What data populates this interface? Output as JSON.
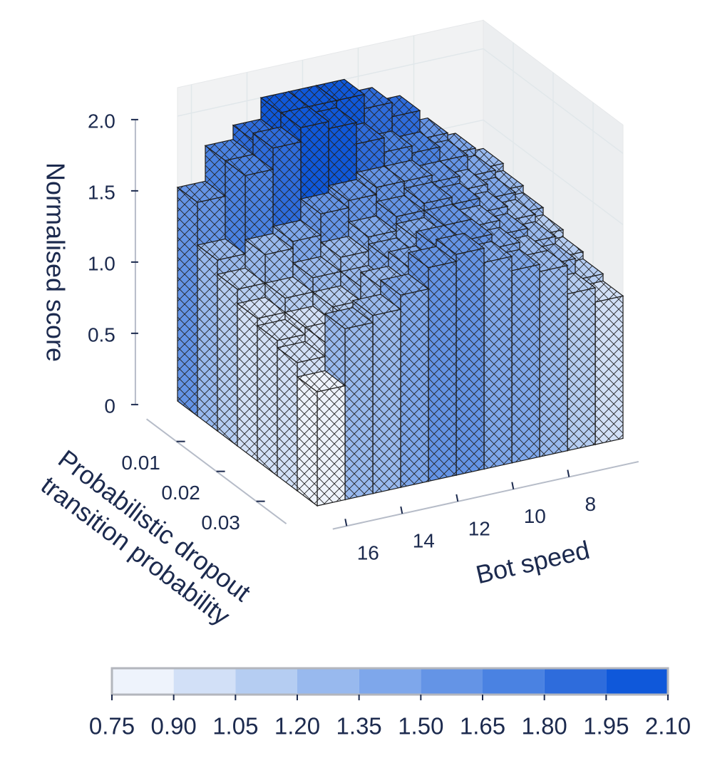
{
  "chart_data": {
    "type": "bar3d",
    "xlabel": "Bot speed",
    "ylabel": [
      "Probabilistic dropout",
      "transition probability"
    ],
    "zlabel": "Normalised score",
    "x": [
      6,
      7,
      8,
      9,
      10,
      11,
      12,
      13,
      14,
      15,
      16
    ],
    "xlim": [
      5.5,
      16.5
    ],
    "xticks": [
      8,
      10,
      12,
      14,
      16
    ],
    "y": [
      0.005,
      0.01,
      0.015,
      0.02,
      0.025,
      0.03,
      0.035
    ],
    "ylim": [
      0.0025,
      0.0375
    ],
    "yticks": [
      0.01,
      0.02,
      0.03
    ],
    "zlim": [
      0,
      2.2
    ],
    "zticks": [
      0,
      0.5,
      {
        "value": 1,
        "label": "1.0"
      },
      1.5,
      {
        "value": 2,
        "label": "2.0"
      }
    ],
    "values": [
      [
        1.3,
        1.45,
        1.6,
        1.8,
        1.9,
        2.0,
        2.0,
        2.0,
        1.85,
        1.75,
        1.5
      ],
      [
        1.25,
        1.4,
        1.55,
        1.65,
        1.7,
        1.8,
        1.95,
        2.0,
        1.9,
        1.75,
        1.2
      ],
      [
        1.2,
        1.35,
        1.45,
        1.55,
        1.6,
        1.6,
        1.55,
        1.5,
        1.35,
        1.3,
        1.1
      ],
      [
        1.15,
        1.3,
        1.4,
        1.5,
        1.55,
        1.5,
        1.4,
        1.3,
        1.2,
        1.1,
        1.0
      ],
      [
        1.1,
        1.25,
        1.35,
        1.45,
        1.5,
        1.45,
        1.35,
        1.2,
        1.1,
        1.0,
        0.95
      ],
      [
        1.05,
        1.2,
        1.3,
        1.4,
        1.5,
        1.5,
        1.4,
        1.3,
        1.1,
        1.0,
        0.9
      ],
      [
        1.0,
        1.1,
        1.3,
        1.35,
        1.45,
        1.55,
        1.5,
        1.35,
        1.25,
        1.2,
        0.8
      ]
    ],
    "hatch": true,
    "colorbar": {
      "ticks": [
        0.75,
        {
          "value": 0.9,
          "label": "0.90"
        },
        1.05,
        {
          "value": 1.2,
          "label": "1.20"
        },
        1.35,
        {
          "value": 1.5,
          "label": "1.50"
        },
        1.65,
        {
          "value": 1.8,
          "label": "1.80"
        },
        1.95,
        {
          "value": 2.1,
          "label": "2.10"
        }
      ],
      "colors": [
        "#eef3fc",
        "#d2e0f7",
        "#b5cdf2",
        "#98b9ee",
        "#7ea7eb",
        "#6494e6",
        "#4a82e2",
        "#2e6cdc",
        "#0f58da"
      ]
    }
  }
}
